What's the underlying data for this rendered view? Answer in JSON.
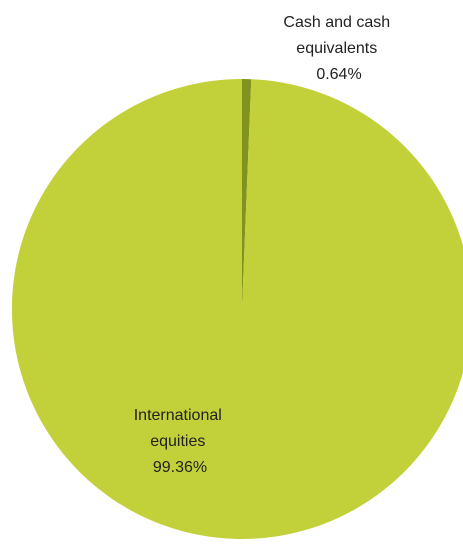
{
  "chart_data": {
    "type": "pie",
    "title": "",
    "start_angle_deg": 0,
    "direction": "clockwise",
    "slices": [
      {
        "label": [
          "Cash and cash",
          "equivalents"
        ],
        "value_label": "0.64%",
        "value": 0.64,
        "color": "#7f931e"
      },
      {
        "label": [
          "International",
          "equities"
        ],
        "value_label": "99.36%",
        "value": 99.36,
        "color": "#c2d13a"
      }
    ]
  }
}
